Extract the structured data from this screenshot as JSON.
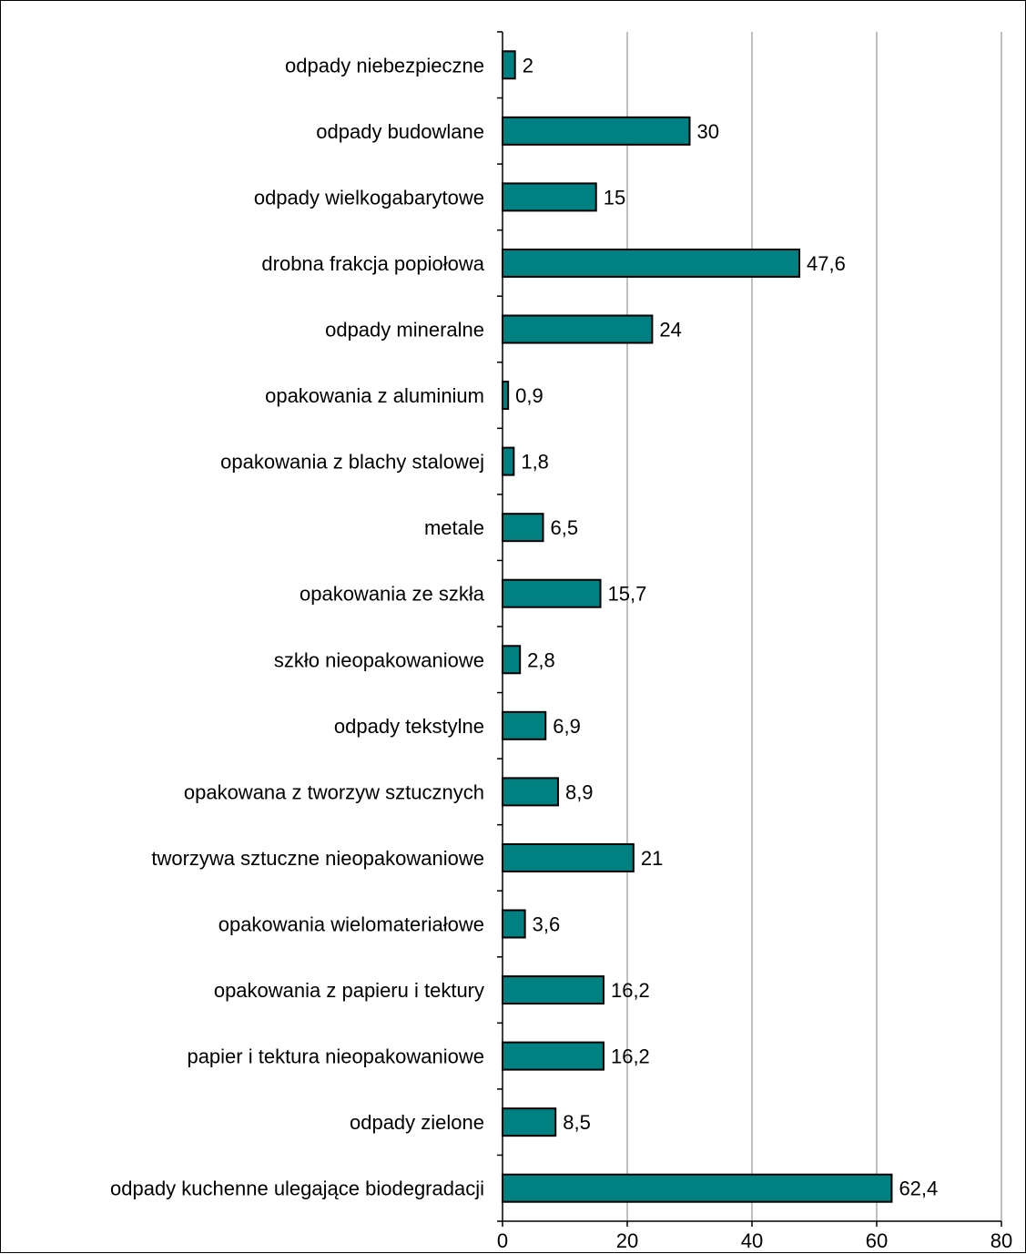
{
  "chart_data": {
    "type": "bar",
    "orientation": "horizontal",
    "categories": [
      "odpady niebezpieczne",
      "odpady budowlane",
      "odpady wielkogabarytowe",
      "drobna frakcja popiołowa",
      "odpady mineralne",
      "opakowania z aluminium",
      "opakowania z blachy stalowej",
      "metale",
      "opakowania ze szkła",
      "szkło nieopakowaniowe",
      "odpady tekstylne",
      "opakowana z tworzyw sztucznych",
      "tworzywa sztuczne nieopakowaniowe",
      "opakowania wielomateriałowe",
      "opakowania z papieru i tektury",
      "papier i tektura nieopakowaniowe",
      "odpady zielone",
      "odpady kuchenne ulegające biodegradacji"
    ],
    "values": [
      2,
      30,
      15,
      47.6,
      24,
      0.9,
      1.8,
      6.5,
      15.7,
      2.8,
      6.9,
      8.9,
      21,
      3.6,
      16.2,
      16.2,
      8.5,
      62.4
    ],
    "value_labels": [
      "2",
      "30",
      "15",
      "47,6",
      "24",
      "0,9",
      "1,8",
      "6,5",
      "15,7",
      "2,8",
      "6,9",
      "8,9",
      "21",
      "3,6",
      "16,2",
      "16,2",
      "8,5",
      "62,4"
    ],
    "xlim": [
      0,
      80
    ],
    "x_ticks": [
      0,
      20,
      40,
      60,
      80
    ],
    "x_tick_labels": [
      "0",
      "20",
      "40",
      "60",
      "80"
    ],
    "grid": "vertical",
    "legend": "none",
    "bar_color": "#008080",
    "bar_edge_color": "#000000",
    "title": "",
    "xlabel": "",
    "ylabel": ""
  }
}
